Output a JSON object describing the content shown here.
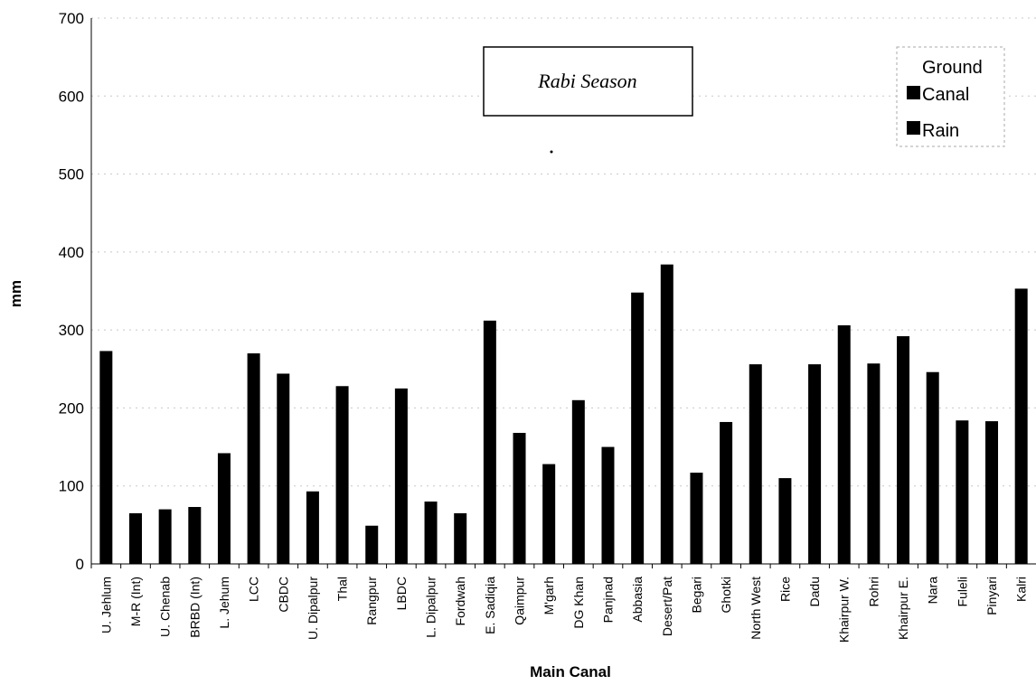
{
  "chart_data": {
    "type": "bar",
    "title": "Rabi Season",
    "xlabel": "Main Canal",
    "ylabel": "mm",
    "ylim": [
      0,
      700
    ],
    "yticks": [
      0,
      100,
      200,
      300,
      400,
      500,
      600,
      700
    ],
    "legend_position": "top-right",
    "legend": [
      "Ground",
      "Canal",
      "Rain"
    ],
    "categories": [
      "U. Jehlum",
      "M-R (Int)",
      "U. Chenab",
      "BRBD (Int)",
      "L. Jehum",
      "LCC",
      "CBDC",
      "U. Dipalpur",
      "Thal",
      "Rangpur",
      "LBDC",
      "L. Dipalpur",
      "Fordwah",
      "E. Sadiqia",
      "Qaimpur",
      "M'garh",
      "DG Khan",
      "Panjnad",
      "Abbasia",
      "Desert/Pat",
      "Begari",
      "Ghotki",
      "North West",
      "Rice",
      "Dadu",
      "Khairpur W.",
      "Rohri",
      "Khairpur E.",
      "Nara",
      "Fuleli",
      "Pinyari",
      "Kalri"
    ],
    "series": [
      {
        "name": "Canal",
        "color": "#000000",
        "values": [
          273,
          65,
          70,
          73,
          142,
          270,
          244,
          93,
          228,
          49,
          225,
          80,
          65,
          312,
          168,
          128,
          210,
          150,
          348,
          384,
          117,
          182,
          256,
          110,
          256,
          306,
          257,
          292,
          246,
          184,
          183,
          353
        ]
      }
    ]
  }
}
